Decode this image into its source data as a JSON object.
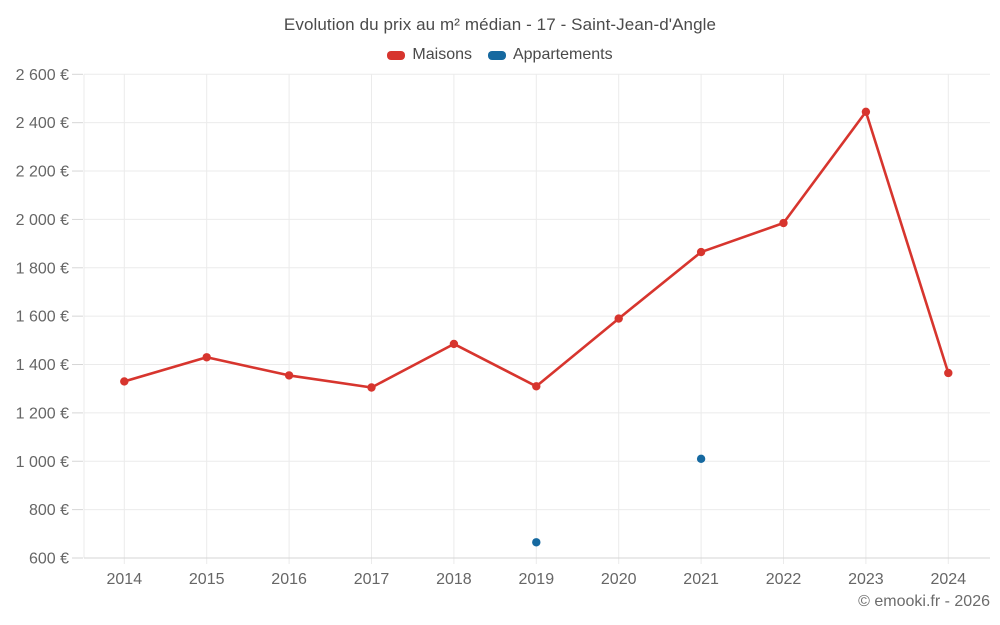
{
  "title": "Evolution du prix au m² médian - 17 - Saint-Jean-d'Angle",
  "footer": {
    "text": "© emooki.fr - 2026"
  },
  "legend": [
    {
      "id": "maisons",
      "label": "Maisons",
      "color": "#d7352e"
    },
    {
      "id": "appartements",
      "label": "Appartements",
      "color": "#1669a0"
    }
  ],
  "style": {
    "grid_color": "#ebebeb",
    "axis_color": "#d6d6d6",
    "tick_text_color": "#666666",
    "background": "#ffffff"
  },
  "chart_data": {
    "type": "line",
    "title": "Evolution du prix au m² médian - 17 - Saint-Jean-d'Angle",
    "x": [
      "2014",
      "2015",
      "2016",
      "2017",
      "2018",
      "2019",
      "2020",
      "2021",
      "2022",
      "2023",
      "2024"
    ],
    "series": [
      {
        "name": "Maisons",
        "type": "line",
        "color": "#d7352e",
        "values": [
          1330,
          1430,
          1355,
          1305,
          1485,
          1310,
          1590,
          1865,
          1985,
          2445,
          1365
        ]
      },
      {
        "name": "Appartements",
        "type": "scatter",
        "color": "#1669a0",
        "values": [
          null,
          null,
          null,
          null,
          null,
          665,
          null,
          1010,
          null,
          null,
          null
        ]
      }
    ],
    "ylabel": "",
    "xlabel": "",
    "ylim": [
      600,
      2600
    ],
    "ytick_step": 200,
    "ytick_labels": [
      "600 €",
      "800 €",
      "1 000 €",
      "1 200 €",
      "1 400 €",
      "1 600 €",
      "1 800 €",
      "2 000 €",
      "2 200 €",
      "2 400 €",
      "2 600 €"
    ],
    "grid": true,
    "legend_position": "top",
    "unit": "€/m²"
  }
}
